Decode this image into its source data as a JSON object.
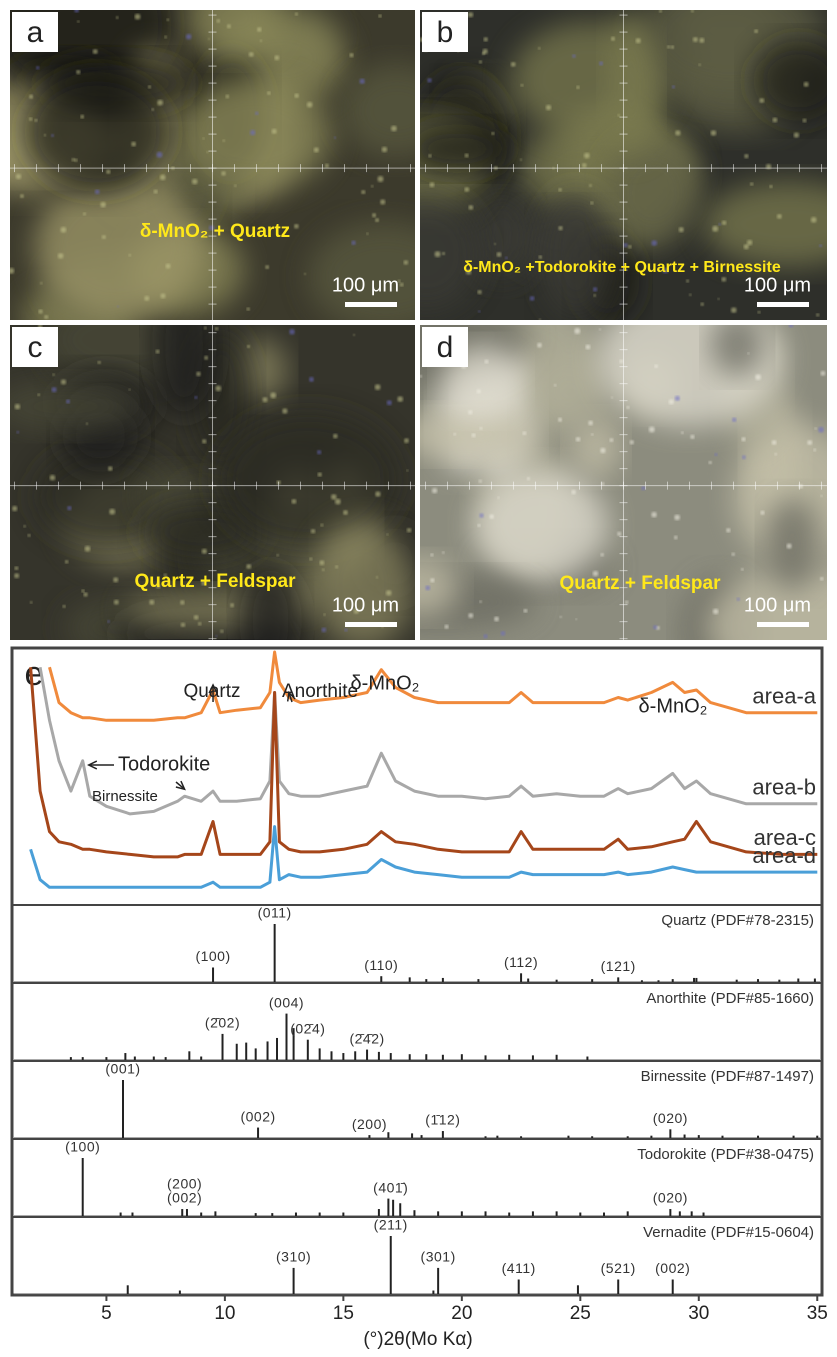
{
  "panels": [
    {
      "letter": "a",
      "caption": "δ-MnO₂ + Quartz",
      "scale_bar": "100 μm"
    },
    {
      "letter": "b",
      "caption": "δ-MnO₂ +Todorokite + Quartz + Birnessite",
      "scale_bar": "100 μm"
    },
    {
      "letter": "c",
      "caption": "Quartz + Feldspar",
      "scale_bar": "100 μm"
    },
    {
      "letter": "d",
      "caption": "Quartz + Feldspar",
      "scale_bar": "100 μm"
    }
  ],
  "chart_data": {
    "type": "line",
    "panel_letter": "e",
    "x": [
      1.8,
      2.2,
      2.6,
      3,
      3.5,
      4,
      4.3,
      5,
      6,
      7,
      8,
      8.3,
      9,
      9.5,
      9.8,
      10.5,
      11.5,
      11.9,
      12.1,
      12.3,
      12.7,
      13.2,
      14,
      15,
      16,
      16.6,
      17.2,
      18,
      19,
      20,
      21,
      22,
      22.5,
      23,
      24,
      25,
      26,
      26.6,
      27,
      28,
      28.9,
      29.4,
      29.9,
      30.5,
      32,
      33.5,
      35
    ],
    "series": [
      {
        "name": "area-a",
        "color": "#f08a3c",
        "values": [
          null,
          null,
          94,
          80,
          76,
          74,
          74,
          73,
          73,
          73,
          74,
          74,
          76,
          85,
          76,
          77,
          78,
          84,
          100,
          88,
          82,
          80,
          81,
          82,
          84,
          93,
          86,
          82,
          80,
          80,
          80,
          80,
          84,
          80,
          80,
          80,
          80,
          82,
          81,
          84,
          88,
          84,
          85,
          80,
          76,
          76,
          76
        ]
      },
      {
        "name": "area-b",
        "color": "#a8a8a8",
        "values": [
          null,
          94,
          73,
          57,
          45,
          57,
          43,
          39,
          36,
          37,
          41,
          43,
          41,
          45,
          41,
          41,
          42,
          49,
          84,
          49,
          44,
          43,
          43,
          45,
          47,
          60,
          49,
          45,
          43,
          43,
          42,
          43,
          47,
          43,
          44,
          43,
          43,
          46,
          44,
          46,
          52,
          46,
          49,
          44,
          40,
          40,
          40
        ]
      },
      {
        "name": "area-c",
        "color": "#a5461a",
        "values": [
          94,
          45,
          29,
          25,
          24,
          22,
          22,
          21,
          20,
          19,
          19,
          20,
          20,
          33,
          20,
          20,
          20,
          25,
          84,
          25,
          22,
          21,
          21,
          22,
          24,
          29,
          25,
          24,
          22,
          21,
          21,
          21,
          29,
          22,
          22,
          22,
          22,
          26,
          22,
          23,
          25,
          26,
          33,
          25,
          21,
          20,
          20
        ]
      },
      {
        "name": "area-d",
        "color": "#4a9fd8",
        "values": [
          22,
          10,
          7,
          7,
          7,
          7,
          7,
          7,
          7,
          7,
          7,
          7,
          7,
          9,
          7,
          7,
          7,
          9,
          31,
          10,
          12,
          11,
          11,
          12,
          13,
          18,
          15,
          13,
          12,
          11,
          11,
          11,
          13,
          12,
          12,
          12,
          12,
          13,
          12,
          13,
          15,
          14,
          13,
          13,
          13,
          13,
          13
        ]
      }
    ],
    "annotations": [
      {
        "text": "Quartz",
        "x": 9.5
      },
      {
        "text": "Anorthite",
        "x": 12.7
      },
      {
        "text": "δ-MnO₂",
        "x": 16.6
      },
      {
        "text": "δ-MnO₂",
        "x": 28.9
      },
      {
        "text": "Todorokite",
        "x": 4
      },
      {
        "text": "Birnessite",
        "x": 8.3
      }
    ],
    "references": [
      {
        "name": "Quartz (PDF#78-2315)",
        "sticks": [
          [
            9.5,
            25
          ],
          [
            12.1,
            100
          ],
          [
            16.6,
            10
          ],
          [
            17.8,
            8
          ],
          [
            18.5,
            5
          ],
          [
            19.2,
            7
          ],
          [
            20.7,
            5
          ],
          [
            22.5,
            15
          ],
          [
            22.8,
            6
          ],
          [
            24,
            4
          ],
          [
            25.5,
            5
          ],
          [
            26.6,
            8
          ],
          [
            27.6,
            3
          ],
          [
            28.3,
            3
          ],
          [
            28.9,
            5
          ],
          [
            29.8,
            7
          ],
          [
            29.9,
            7
          ],
          [
            31.6,
            4
          ],
          [
            32.5,
            5
          ],
          [
            33.4,
            4
          ],
          [
            34.2,
            6
          ],
          [
            34.9,
            6
          ]
        ],
        "peaks": [
          {
            "label": "(100)",
            "x": 9.5
          },
          {
            "label": "(011)",
            "x": 12.1
          },
          {
            "label": "(110)",
            "x": 16.6
          },
          {
            "label": "(112)",
            "x": 22.5
          },
          {
            "label": "(121)",
            "x": 26.6
          }
        ]
      },
      {
        "name": "Anorthite (PDF#85-1660)",
        "sticks": [
          [
            3.5,
            5
          ],
          [
            4,
            5
          ],
          [
            5,
            5
          ],
          [
            5.8,
            12
          ],
          [
            6.2,
            6
          ],
          [
            7,
            6
          ],
          [
            7.5,
            5
          ],
          [
            8.5,
            15
          ],
          [
            9,
            6
          ],
          [
            9.9,
            45
          ],
          [
            10.5,
            28
          ],
          [
            10.9,
            30
          ],
          [
            11.3,
            20
          ],
          [
            11.8,
            32
          ],
          [
            12.2,
            38
          ],
          [
            12.6,
            80
          ],
          [
            12.9,
            55
          ],
          [
            13.5,
            35
          ],
          [
            14,
            20
          ],
          [
            14.5,
            15
          ],
          [
            15,
            12
          ],
          [
            15.5,
            15
          ],
          [
            16,
            18
          ],
          [
            16.5,
            14
          ],
          [
            17,
            12
          ],
          [
            17.8,
            10
          ],
          [
            18.5,
            10
          ],
          [
            19.2,
            9
          ],
          [
            20,
            10
          ],
          [
            21,
            8
          ],
          [
            22,
            9
          ],
          [
            23,
            8
          ],
          [
            24,
            9
          ],
          [
            25.3,
            6
          ]
        ],
        "peaks": [
          {
            "label": "(2̄02)",
            "x": 9.9
          },
          {
            "label": "(004)",
            "x": 12.6
          },
          {
            "label": "(02̄4)",
            "x": 13.5
          },
          {
            "label": "(2̄4̄2)",
            "x": 16
          }
        ]
      },
      {
        "name": "Birnessite (PDF#87-1497)",
        "sticks": [
          [
            5.7,
            100
          ],
          [
            11.4,
            18
          ],
          [
            16.1,
            5
          ],
          [
            16.9,
            10
          ],
          [
            17.9,
            8
          ],
          [
            18.3,
            5
          ],
          [
            19.2,
            12
          ],
          [
            21,
            3
          ],
          [
            21.5,
            4
          ],
          [
            22.5,
            3
          ],
          [
            24.5,
            4
          ],
          [
            25.5,
            3
          ],
          [
            27,
            3
          ],
          [
            28,
            4
          ],
          [
            28.8,
            15
          ],
          [
            29.4,
            6
          ],
          [
            30,
            5
          ],
          [
            31,
            4
          ],
          [
            32.5,
            4
          ],
          [
            34,
            4
          ],
          [
            35,
            4
          ]
        ],
        "peaks": [
          {
            "label": "(001)",
            "x": 5.7
          },
          {
            "label": "(002)",
            "x": 11.4
          },
          {
            "label": "(200)",
            "x": 16.1
          },
          {
            "label": "(1̄12)",
            "x": 19.2
          },
          {
            "label": "(020)",
            "x": 28.8
          }
        ]
      },
      {
        "name": "Todorokite (PDF#38-0475)",
        "sticks": [
          [
            4,
            100
          ],
          [
            5.6,
            6
          ],
          [
            6.1,
            6
          ],
          [
            8.2,
            12
          ],
          [
            8.4,
            12
          ],
          [
            9,
            6
          ],
          [
            9.6,
            8
          ],
          [
            11.3,
            5
          ],
          [
            12,
            5
          ],
          [
            13,
            6
          ],
          [
            14,
            6
          ],
          [
            15,
            6
          ],
          [
            16.5,
            12
          ],
          [
            16.9,
            30
          ],
          [
            17.1,
            28
          ],
          [
            17.4,
            22
          ],
          [
            18,
            10
          ],
          [
            19,
            8
          ],
          [
            20,
            8
          ],
          [
            21,
            8
          ],
          [
            22,
            6
          ],
          [
            23,
            8
          ],
          [
            24,
            8
          ],
          [
            25,
            6
          ],
          [
            26,
            6
          ],
          [
            27,
            8
          ],
          [
            28.8,
            12
          ],
          [
            29.2,
            8
          ],
          [
            29.7,
            8
          ],
          [
            30.2,
            6
          ]
        ],
        "peaks": [
          {
            "label": "(100)",
            "x": 4
          },
          {
            "label": "(002)",
            "x": 8.3
          },
          {
            "label": "(200)",
            "x": 8.3
          },
          {
            "label": "(401̄)",
            "x": 17
          },
          {
            "label": "(020)",
            "x": 28.8
          }
        ]
      },
      {
        "name": "Vernadite (PDF#15-0604)",
        "sticks": [
          [
            5.9,
            15
          ],
          [
            8.1,
            6
          ],
          [
            12.9,
            45
          ],
          [
            17,
            100
          ],
          [
            18.8,
            6
          ],
          [
            19,
            45
          ],
          [
            22.4,
            25
          ],
          [
            24.9,
            15
          ],
          [
            26.6,
            25
          ],
          [
            28.9,
            25
          ]
        ],
        "peaks": [
          {
            "label": "(310)",
            "x": 12.9
          },
          {
            "label": "(211)",
            "x": 17
          },
          {
            "label": "(301)",
            "x": 19
          },
          {
            "label": "(411)",
            "x": 22.4
          },
          {
            "label": "(521)",
            "x": 26.6
          },
          {
            "label": "(002)",
            "x": 28.9
          }
        ]
      }
    ],
    "xlim": [
      1.1,
      35.2
    ],
    "ylim": [
      0,
      100
    ],
    "xticks": [
      5,
      10,
      15,
      20,
      25,
      30,
      35
    ],
    "xlabel": "(°)2θ(Mo Kα)"
  }
}
